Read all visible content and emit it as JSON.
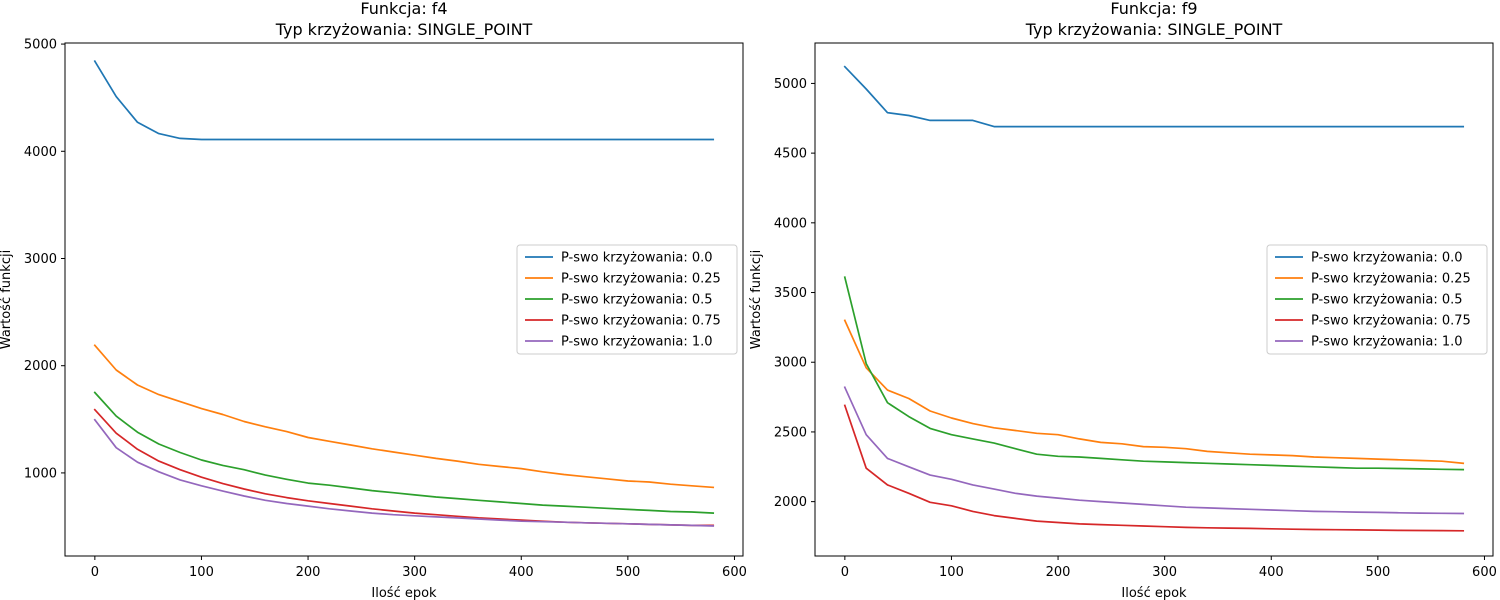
{
  "colors": [
    "#1f77b4",
    "#ff7f0e",
    "#2ca02c",
    "#d62728",
    "#9467bd"
  ],
  "chart_data": [
    {
      "type": "line",
      "title_line1": "Funkcja: f4",
      "title_line2": "Typ krzyżowania: SINGLE_POINT",
      "xlabel": "Ilość epok",
      "ylabel": "Wartość funkcji",
      "xlim": [
        -28,
        608
      ],
      "ylim": [
        225,
        5010
      ],
      "xticks": [
        0,
        100,
        200,
        300,
        400,
        500,
        600
      ],
      "yticks": [
        1000,
        2000,
        3000,
        4000,
        5000
      ],
      "legend_position": "center-right",
      "grid": false,
      "x": [
        0,
        20,
        40,
        60,
        80,
        100,
        120,
        140,
        160,
        180,
        200,
        220,
        240,
        260,
        280,
        300,
        320,
        340,
        360,
        380,
        400,
        420,
        440,
        460,
        480,
        500,
        520,
        540,
        560,
        580
      ],
      "series": [
        {
          "name": "P-swo krzyżowania: 0.0",
          "values": [
            4840,
            4510,
            4270,
            4165,
            4120,
            4110,
            4110,
            4110,
            4110,
            4110,
            4110,
            4110,
            4110,
            4110,
            4110,
            4110,
            4110,
            4110,
            4110,
            4110,
            4110,
            4110,
            4110,
            4110,
            4110,
            4110,
            4110,
            4110,
            4110,
            4110
          ]
        },
        {
          "name": "P-swo krzyżowania: 0.25",
          "values": [
            2190,
            1960,
            1820,
            1730,
            1665,
            1600,
            1545,
            1480,
            1430,
            1385,
            1330,
            1295,
            1260,
            1225,
            1195,
            1165,
            1135,
            1110,
            1080,
            1060,
            1040,
            1010,
            985,
            965,
            945,
            925,
            915,
            895,
            880,
            865
          ]
        },
        {
          "name": "P-swo krzyżowania: 0.5",
          "values": [
            1750,
            1530,
            1380,
            1270,
            1190,
            1120,
            1070,
            1030,
            980,
            940,
            905,
            885,
            860,
            835,
            815,
            795,
            775,
            760,
            745,
            730,
            715,
            700,
            690,
            680,
            670,
            660,
            650,
            640,
            635,
            625
          ]
        },
        {
          "name": "P-swo krzyżowania: 0.75",
          "values": [
            1590,
            1370,
            1220,
            1110,
            1030,
            960,
            900,
            850,
            805,
            770,
            740,
            715,
            690,
            665,
            645,
            625,
            610,
            595,
            580,
            570,
            560,
            550,
            540,
            535,
            530,
            525,
            520,
            515,
            510,
            510
          ]
        },
        {
          "name": "P-swo krzyżowania: 1.0",
          "values": [
            1495,
            1235,
            1100,
            1010,
            935,
            880,
            830,
            785,
            745,
            715,
            690,
            665,
            645,
            625,
            610,
            600,
            590,
            580,
            570,
            560,
            550,
            545,
            540,
            535,
            530,
            525,
            520,
            515,
            510,
            505
          ]
        }
      ]
    },
    {
      "type": "line",
      "title_line1": "Funkcja: f9",
      "title_line2": "Typ krzyżowania: SINGLE_POINT",
      "xlabel": "Ilość epok",
      "ylabel": "Wartość funkcji",
      "xlim": [
        -28,
        608
      ],
      "ylim": [
        1610,
        5290
      ],
      "xticks": [
        0,
        100,
        200,
        300,
        400,
        500,
        600
      ],
      "yticks": [
        2000,
        2500,
        3000,
        3500,
        4000,
        4500,
        5000
      ],
      "legend_position": "center-right",
      "grid": false,
      "x": [
        0,
        20,
        40,
        60,
        80,
        100,
        120,
        140,
        160,
        180,
        200,
        220,
        240,
        260,
        280,
        300,
        320,
        340,
        360,
        380,
        400,
        420,
        440,
        460,
        480,
        500,
        520,
        540,
        560,
        580
      ],
      "series": [
        {
          "name": "P-swo krzyżowania: 0.0",
          "values": [
            5120,
            4960,
            4790,
            4770,
            4735,
            4735,
            4735,
            4690,
            4690,
            4690,
            4690,
            4690,
            4690,
            4690,
            4690,
            4690,
            4690,
            4690,
            4690,
            4690,
            4690,
            4690,
            4690,
            4690,
            4690,
            4690,
            4690,
            4690,
            4690,
            4690
          ]
        },
        {
          "name": "P-swo krzyżowania: 0.25",
          "values": [
            3300,
            2960,
            2800,
            2740,
            2650,
            2600,
            2560,
            2530,
            2510,
            2490,
            2480,
            2450,
            2425,
            2415,
            2395,
            2390,
            2380,
            2360,
            2350,
            2340,
            2335,
            2330,
            2320,
            2315,
            2310,
            2305,
            2300,
            2295,
            2290,
            2275
          ]
        },
        {
          "name": "P-swo krzyżowania: 0.5",
          "values": [
            3610,
            2990,
            2710,
            2610,
            2525,
            2480,
            2450,
            2420,
            2380,
            2340,
            2325,
            2320,
            2310,
            2300,
            2290,
            2285,
            2280,
            2275,
            2270,
            2265,
            2260,
            2255,
            2250,
            2245,
            2240,
            2240,
            2238,
            2235,
            2232,
            2230
          ]
        },
        {
          "name": "P-swo krzyżowania: 0.75",
          "values": [
            2690,
            2240,
            2120,
            2060,
            1995,
            1970,
            1930,
            1900,
            1880,
            1860,
            1850,
            1840,
            1835,
            1830,
            1825,
            1820,
            1815,
            1812,
            1810,
            1808,
            1805,
            1802,
            1800,
            1799,
            1797,
            1796,
            1794,
            1793,
            1792,
            1791
          ]
        },
        {
          "name": "P-swo krzyżowania: 1.0",
          "values": [
            2820,
            2480,
            2310,
            2250,
            2190,
            2160,
            2120,
            2090,
            2060,
            2040,
            2025,
            2010,
            2000,
            1990,
            1980,
            1970,
            1960,
            1955,
            1950,
            1945,
            1940,
            1935,
            1930,
            1928,
            1925,
            1923,
            1920,
            1918,
            1916,
            1915
          ]
        }
      ]
    }
  ]
}
